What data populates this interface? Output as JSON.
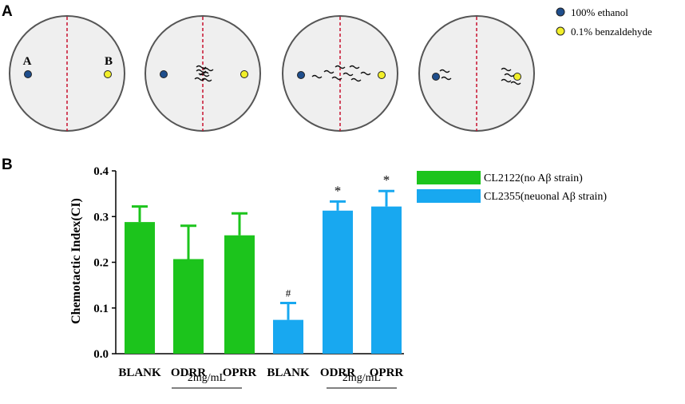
{
  "panel_a": {
    "letter": "A",
    "spot_a_label": "A",
    "spot_b_label": "B",
    "legend": [
      {
        "label": "100% ethanol",
        "color": "#1f4e8c"
      },
      {
        "label": "0.1% benzaldehyde",
        "color": "#f2ef2a"
      }
    ],
    "plates": [
      {
        "worm_distribution": "none"
      },
      {
        "worm_distribution": "cluster at center line"
      },
      {
        "worm_distribution": "spread across center"
      },
      {
        "worm_distribution": "near both spots"
      }
    ],
    "colors": {
      "plate_fill": "#efefef",
      "plate_stroke": "#555555",
      "center_line": "#c8102e"
    }
  },
  "panel_b": {
    "letter": "B",
    "group_label": "2mg/mL"
  },
  "chart_data": {
    "type": "bar",
    "title": "",
    "xlabel": "",
    "ylabel": "Chemotactic Index(CI)",
    "ylim": [
      0,
      0.4
    ],
    "yticks": [
      "0.0",
      "0.1",
      "0.2",
      "0.3",
      "0.4"
    ],
    "categories": [
      "BLANK",
      "ODRR",
      "OPRR",
      "BLANK",
      "ODRR",
      "OPRR"
    ],
    "values": [
      0.288,
      0.207,
      0.259,
      0.074,
      0.313,
      0.322
    ],
    "errors": [
      0.034,
      0.073,
      0.048,
      0.037,
      0.02,
      0.034
    ],
    "annotations": [
      "",
      "",
      "",
      "#",
      "*",
      "*"
    ],
    "series": [
      {
        "name": "CL2122(no Aβ   strain)",
        "color": "#1cc41c",
        "bar_indices": [
          0,
          1,
          2
        ]
      },
      {
        "name": "CL2355(neuonal Aβ   strain)",
        "color": "#18a8f0",
        "bar_indices": [
          3,
          4,
          5
        ]
      }
    ],
    "grid": false,
    "legend_position": "top-right"
  }
}
